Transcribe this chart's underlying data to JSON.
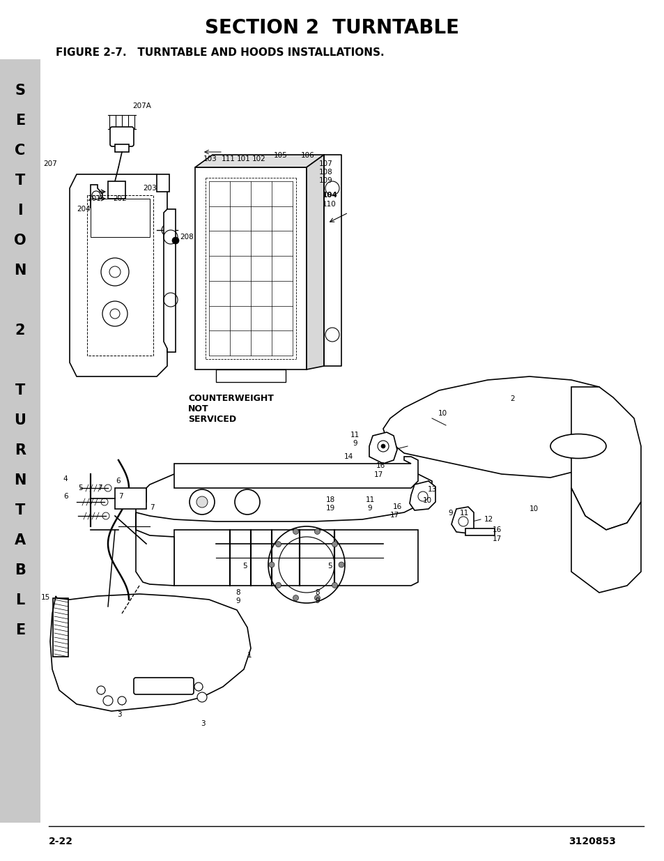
{
  "title": "SECTION 2  TURNTABLE",
  "figure_label": "FIGURE 2-7.   TURNTABLE AND HOODS INSTALLATIONS.",
  "page_number": "2-22",
  "doc_number": "3120853",
  "sidebar_bg": "#c8c8c8",
  "page_bg": "#ffffff",
  "title_fontsize": 20,
  "figure_label_fontsize": 11,
  "footer_fontsize": 10,
  "sidebar_fontsize": 15,
  "counterweight_label": "COUNTERWEIGHT\nNOT\nSERVICED"
}
